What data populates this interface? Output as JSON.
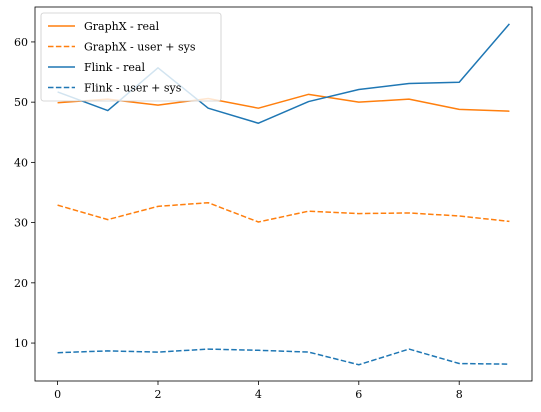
{
  "chart_data": {
    "type": "line",
    "title": "",
    "xlabel": "",
    "ylabel": "",
    "xlim": [
      -0.45,
      9.45
    ],
    "ylim": [
      3.7,
      65.8
    ],
    "xticks": [
      0,
      2,
      4,
      6,
      8
    ],
    "yticks": [
      10,
      20,
      30,
      40,
      50,
      60
    ],
    "grid": false,
    "legend_position": "top-left",
    "x": [
      0,
      1,
      2,
      3,
      4,
      5,
      6,
      7,
      8,
      9
    ],
    "series": [
      {
        "name": "GraphX - real",
        "color": "#ff7f0e",
        "linestyle": "solid",
        "values": [
          49.9,
          50.5,
          49.5,
          50.6,
          49.0,
          51.3,
          50.0,
          50.5,
          48.8,
          48.5
        ]
      },
      {
        "name": "GraphX - user + sys",
        "color": "#ff7f0e",
        "linestyle": "dashed",
        "values": [
          32.9,
          30.5,
          32.7,
          33.3,
          30.1,
          31.9,
          31.5,
          31.6,
          31.1,
          30.2
        ]
      },
      {
        "name": "Flink - real",
        "color": "#1f77b4",
        "linestyle": "solid",
        "values": [
          51.7,
          48.6,
          55.7,
          49.0,
          46.5,
          50.1,
          52.1,
          53.1,
          53.3,
          63.0
        ]
      },
      {
        "name": "Flink - user + sys",
        "color": "#1f77b4",
        "linestyle": "dashed",
        "values": [
          8.4,
          8.7,
          8.5,
          9.0,
          8.8,
          8.5,
          6.4,
          9.0,
          6.6,
          6.5
        ]
      }
    ]
  }
}
